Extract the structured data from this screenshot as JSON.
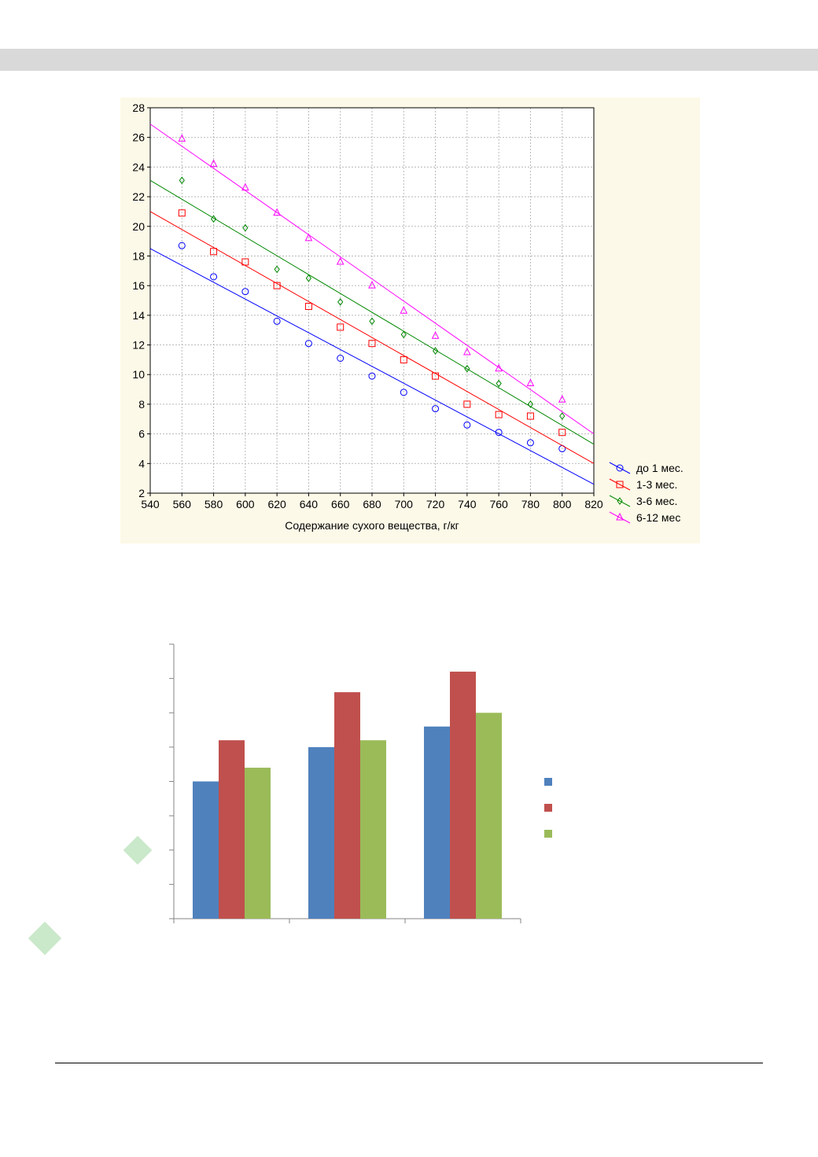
{
  "chart_data": [
    {
      "type": "scatter",
      "title": "",
      "xlabel": "Содержание сухого вещества, г/кг",
      "ylabel": "",
      "xlim": [
        540,
        820
      ],
      "ylim": [
        2,
        28
      ],
      "xticks": [
        "540",
        "560",
        "580",
        "600",
        "620",
        "640",
        "660",
        "680",
        "700",
        "720",
        "740",
        "760",
        "780",
        "800",
        "820"
      ],
      "yticks": [
        "2",
        "4",
        "6",
        "8",
        "10",
        "12",
        "14",
        "16",
        "18",
        "20",
        "22",
        "24",
        "26",
        "28"
      ],
      "grid": true,
      "legend_position": "bottom-right",
      "x": [
        560,
        580,
        600,
        620,
        640,
        660,
        680,
        700,
        720,
        740,
        760,
        780,
        800
      ],
      "series": [
        {
          "name": "до 1 мес.",
          "color": "#0000ff",
          "marker": "circle",
          "values": [
            18.7,
            16.6,
            15.6,
            13.6,
            12.1,
            11.1,
            9.9,
            8.8,
            7.7,
            6.6,
            6.1,
            5.4,
            5.0
          ],
          "fit": [
            [
              540,
              18.5
            ],
            [
              820,
              2.6
            ]
          ]
        },
        {
          "name": "1-3 мес.",
          "color": "#ff0000",
          "marker": "square",
          "values": [
            20.9,
            18.3,
            17.6,
            16.0,
            14.6,
            13.2,
            12.1,
            11.0,
            9.9,
            8.0,
            7.3,
            7.2,
            6.1
          ],
          "fit": [
            [
              540,
              21.0
            ],
            [
              820,
              4.0
            ]
          ]
        },
        {
          "name": "3-6 мес.",
          "color": "#008800",
          "marker": "diamond",
          "values": [
            23.1,
            20.5,
            19.9,
            17.1,
            16.5,
            14.9,
            13.6,
            12.7,
            11.6,
            10.4,
            9.4,
            8.0,
            7.2
          ],
          "fit": [
            [
              540,
              23.1
            ],
            [
              820,
              5.3
            ]
          ]
        },
        {
          "name": "6-12 мес",
          "color": "#ff00ff",
          "marker": "triangle",
          "values": [
            25.9,
            24.2,
            22.6,
            20.9,
            19.2,
            17.6,
            16.0,
            14.3,
            12.6,
            11.5,
            10.4,
            9.4,
            8.3
          ],
          "fit": [
            [
              540,
              26.9
            ],
            [
              820,
              6.0
            ]
          ]
        }
      ]
    },
    {
      "type": "bar",
      "title": "",
      "xlabel": "",
      "ylabel": "",
      "ylim": [
        0,
        8
      ],
      "y_gridlines": 8,
      "categories": [
        "",
        "",
        ""
      ],
      "legend_position": "right",
      "series": [
        {
          "color": "#4f81bd",
          "values": [
            4.0,
            5.0,
            5.6
          ]
        },
        {
          "color": "#c0504d",
          "values": [
            5.2,
            6.6,
            7.2
          ]
        },
        {
          "color": "#9bbb59",
          "values": [
            4.4,
            5.2,
            6.0
          ]
        }
      ]
    }
  ]
}
